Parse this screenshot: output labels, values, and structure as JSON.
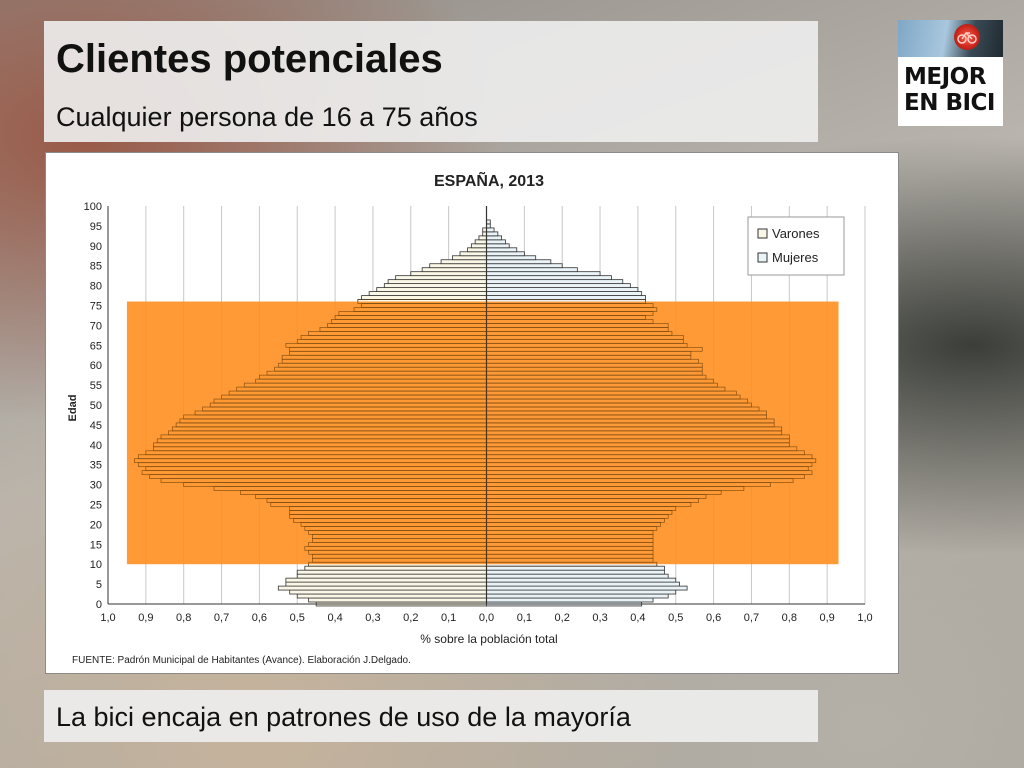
{
  "slide": {
    "title": "Clientes potenciales",
    "subtitle": "Cualquier persona de 16 a 75 años",
    "footer": "La bici encaja en patrones de uso de la mayoría"
  },
  "logo": {
    "text_line1": "MEJOR",
    "text_line2": "EN BICI"
  },
  "colors": {
    "highlight": "#ff8c1a",
    "varones_fill": "#fbf7e6",
    "mujeres_fill": "#eaf3f8",
    "bar_stroke": "#333333",
    "grid": "#c8c8c8"
  },
  "chart_data": {
    "type": "bar",
    "orientation": "horizontal",
    "title": "ESPAÑA, 2013",
    "xlabel": "% sobre la población total",
    "ylabel": "Edad",
    "source": "FUENTE: Padrón Municipal de Habitantes (Avance). Elaboración J.Delgado.",
    "xlim": [
      -1.0,
      1.0
    ],
    "ylim": [
      0,
      100
    ],
    "xtick_labels": [
      "1,0",
      "0,9",
      "0,8",
      "0,7",
      "0,6",
      "0,5",
      "0,4",
      "0,3",
      "0,2",
      "0,1",
      "0,0",
      "0,1",
      "0,2",
      "0,3",
      "0,4",
      "0,5",
      "0,6",
      "0,7",
      "0,8",
      "0,9",
      "1,0"
    ],
    "ytick_labels": [
      "0",
      "5",
      "10",
      "15",
      "20",
      "25",
      "30",
      "35",
      "40",
      "45",
      "50",
      "55",
      "60",
      "65",
      "70",
      "75",
      "80",
      "85",
      "90",
      "95",
      "100"
    ],
    "legend_position": "top-right",
    "highlight_range": {
      "age_from": 10,
      "age_to": 76
    },
    "series": [
      {
        "name": "Varones",
        "side": "left",
        "values": [
          0.45,
          0.47,
          0.5,
          0.52,
          0.55,
          0.53,
          0.53,
          0.5,
          0.5,
          0.48,
          0.47,
          0.46,
          0.46,
          0.47,
          0.48,
          0.47,
          0.46,
          0.46,
          0.47,
          0.48,
          0.49,
          0.51,
          0.52,
          0.52,
          0.52,
          0.57,
          0.58,
          0.61,
          0.65,
          0.72,
          0.8,
          0.86,
          0.89,
          0.91,
          0.9,
          0.92,
          0.93,
          0.92,
          0.9,
          0.88,
          0.88,
          0.87,
          0.86,
          0.84,
          0.83,
          0.82,
          0.81,
          0.8,
          0.77,
          0.75,
          0.73,
          0.72,
          0.7,
          0.68,
          0.66,
          0.64,
          0.61,
          0.6,
          0.58,
          0.56,
          0.55,
          0.54,
          0.54,
          0.52,
          0.52,
          0.53,
          0.5,
          0.49,
          0.47,
          0.44,
          0.42,
          0.41,
          0.4,
          0.39,
          0.35,
          0.33,
          0.34,
          0.33,
          0.31,
          0.29,
          0.27,
          0.26,
          0.24,
          0.2,
          0.17,
          0.15,
          0.12,
          0.09,
          0.07,
          0.05,
          0.04,
          0.03,
          0.02,
          0.01,
          0.01,
          0.0,
          0.0,
          0.0,
          0.0,
          0.0,
          0.0
        ]
      },
      {
        "name": "Mujeres",
        "side": "right",
        "values": [
          0.41,
          0.44,
          0.48,
          0.5,
          0.53,
          0.51,
          0.5,
          0.48,
          0.47,
          0.47,
          0.45,
          0.44,
          0.44,
          0.44,
          0.44,
          0.44,
          0.44,
          0.44,
          0.44,
          0.45,
          0.46,
          0.47,
          0.48,
          0.49,
          0.5,
          0.54,
          0.56,
          0.58,
          0.62,
          0.68,
          0.75,
          0.81,
          0.84,
          0.86,
          0.85,
          0.86,
          0.87,
          0.86,
          0.84,
          0.82,
          0.8,
          0.8,
          0.8,
          0.78,
          0.78,
          0.76,
          0.76,
          0.74,
          0.74,
          0.72,
          0.7,
          0.69,
          0.67,
          0.66,
          0.63,
          0.61,
          0.6,
          0.58,
          0.57,
          0.57,
          0.57,
          0.56,
          0.54,
          0.54,
          0.57,
          0.53,
          0.52,
          0.52,
          0.49,
          0.48,
          0.48,
          0.44,
          0.42,
          0.44,
          0.45,
          0.44,
          0.42,
          0.42,
          0.41,
          0.4,
          0.38,
          0.36,
          0.33,
          0.3,
          0.24,
          0.2,
          0.17,
          0.13,
          0.1,
          0.08,
          0.06,
          0.05,
          0.04,
          0.03,
          0.02,
          0.01,
          0.01,
          0.0,
          0.0,
          0.0,
          0.0
        ]
      }
    ]
  }
}
